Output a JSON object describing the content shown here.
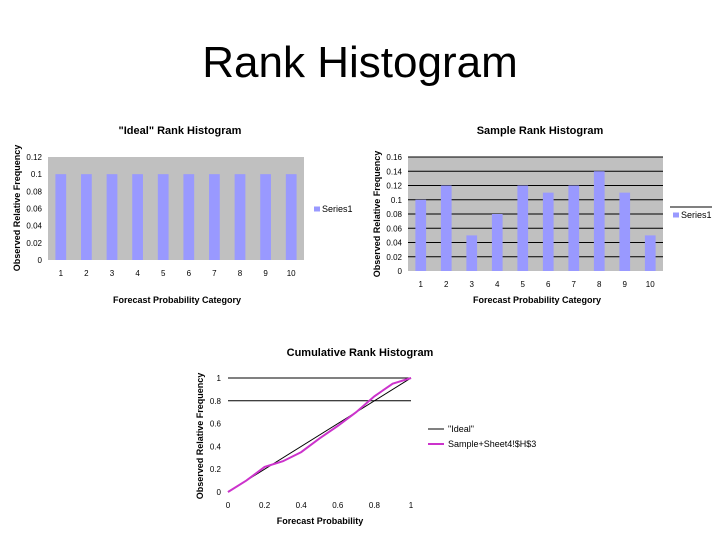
{
  "slide": {
    "title": "Rank Histogram"
  },
  "colors": {
    "plot_bg": "#c0c0c0",
    "bar_fill": "#9999ff",
    "ideal_line": "#000000",
    "sample_line": "#cc33cc"
  },
  "chart_data": [
    {
      "type": "bar",
      "title": "\"Ideal\" Rank Histogram",
      "xlabel": "Forecast Probability Category",
      "ylabel": "Observed Relative Frequency",
      "categories": [
        "1",
        "2",
        "3",
        "4",
        "5",
        "6",
        "7",
        "8",
        "9",
        "10"
      ],
      "series": [
        {
          "name": "Series1",
          "values": [
            0.1,
            0.1,
            0.1,
            0.1,
            0.1,
            0.1,
            0.1,
            0.1,
            0.1,
            0.1
          ]
        }
      ],
      "ylim": [
        0,
        0.12
      ],
      "yticks": [
        "0",
        "0.02",
        "0.04",
        "0.06",
        "0.08",
        "0.1",
        "0.12"
      ],
      "legend": "right",
      "grid": false
    },
    {
      "type": "bar",
      "title": "Sample Rank Histogram",
      "xlabel": "Forecast Probability Category",
      "ylabel": "Observed Relative Frequency",
      "categories": [
        "1",
        "2",
        "3",
        "4",
        "5",
        "6",
        "7",
        "8",
        "9",
        "10"
      ],
      "series": [
        {
          "name": "Series1",
          "values": [
            0.1,
            0.12,
            0.05,
            0.08,
            0.12,
            0.11,
            0.12,
            0.14,
            0.11,
            0.05
          ]
        }
      ],
      "ylim": [
        0,
        0.16
      ],
      "yticks": [
        "0",
        "0.02",
        "0.04",
        "0.06",
        "0.08",
        "0.1",
        "0.12",
        "0.14",
        "0.16"
      ],
      "legend": "right",
      "grid": true
    },
    {
      "type": "line",
      "title": "Cumulative Rank Histogram",
      "xlabel": "Forecast Probability",
      "ylabel": "Observed Relative Frequency",
      "xlim": [
        0,
        1
      ],
      "ylim": [
        0,
        1
      ],
      "xticks": [
        "0",
        "0.2",
        "0.4",
        "0.6",
        "0.8",
        "1"
      ],
      "yticks": [
        "0",
        "0.2",
        "0.4",
        "0.6",
        "0.8",
        "1"
      ],
      "series": [
        {
          "name": "\"Ideal\"",
          "x": [
            0,
            1
          ],
          "y": [
            0,
            1
          ]
        },
        {
          "name": "Sample+Sheet4!$H$3",
          "x": [
            0,
            0.1,
            0.2,
            0.3,
            0.4,
            0.5,
            0.6,
            0.7,
            0.8,
            0.9,
            1
          ],
          "y": [
            0,
            0.1,
            0.22,
            0.27,
            0.35,
            0.47,
            0.58,
            0.7,
            0.84,
            0.95,
            1
          ]
        }
      ],
      "legend": "right",
      "grid": true
    }
  ]
}
